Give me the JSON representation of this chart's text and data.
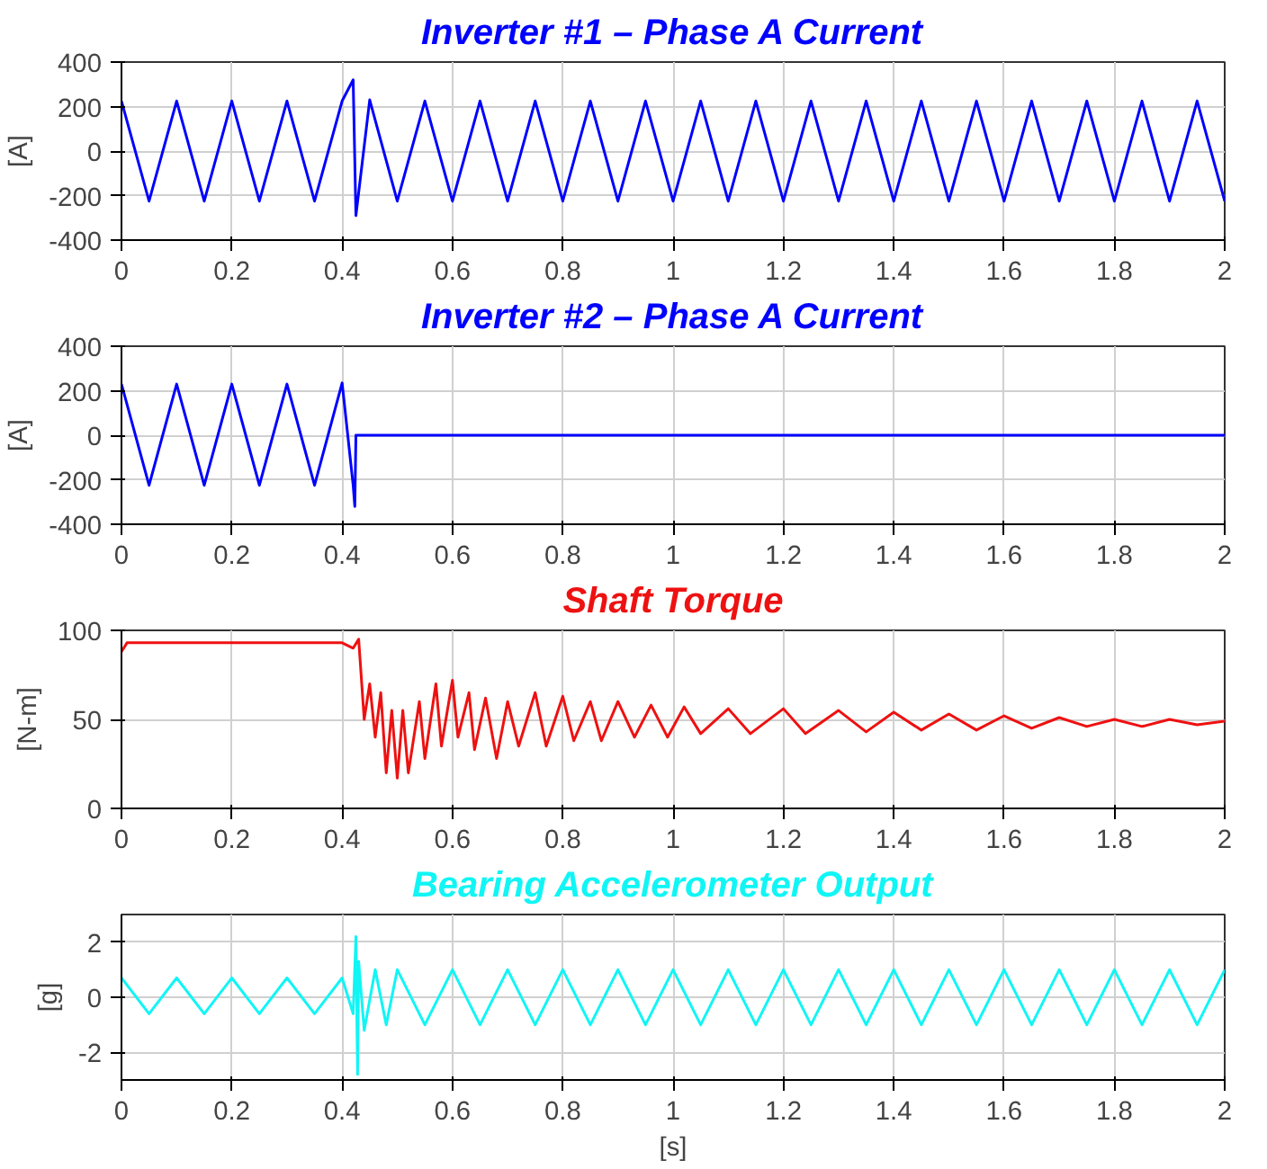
{
  "chart_data": [
    {
      "type": "line",
      "title": "Inverter #1 – Phase A Current",
      "ylabel": "[A]",
      "xlim": [
        0,
        2
      ],
      "ylim": [
        -400,
        400
      ],
      "xticks": [
        0,
        0.2,
        0.4,
        0.6,
        0.8,
        1,
        1.2,
        1.4,
        1.6,
        1.8,
        2
      ],
      "yticks": [
        -400,
        -200,
        0,
        200,
        400
      ],
      "grid": true,
      "series": [
        {
          "color": "#0000ff",
          "x": [
            0,
            0.05,
            0.1,
            0.15,
            0.2,
            0.25,
            0.3,
            0.35,
            0.4,
            0.42,
            0.425,
            0.45,
            0.5,
            0.55,
            0.6,
            0.65,
            0.7,
            0.75,
            0.8,
            0.85,
            0.9,
            0.95,
            1,
            1.05,
            1.1,
            1.15,
            1.2,
            1.25,
            1.3,
            1.35,
            1.4,
            1.45,
            1.5,
            1.55,
            1.6,
            1.65,
            1.7,
            1.75,
            1.8,
            1.85,
            1.9,
            1.95,
            2
          ],
          "values": [
            225,
            -225,
            225,
            -225,
            225,
            -225,
            225,
            -225,
            225,
            320,
            -290,
            230,
            -225,
            225,
            -225,
            225,
            -225,
            225,
            -225,
            225,
            -225,
            225,
            -225,
            225,
            -225,
            225,
            -225,
            225,
            -225,
            225,
            -225,
            225,
            -225,
            225,
            -225,
            225,
            -225,
            225,
            -225,
            225,
            -225,
            225,
            -225
          ]
        }
      ]
    },
    {
      "type": "line",
      "title": "Inverter #2 – Phase A Current",
      "ylabel": "[A]",
      "xlim": [
        0,
        2
      ],
      "ylim": [
        -400,
        400
      ],
      "xticks": [
        0,
        0.2,
        0.4,
        0.6,
        0.8,
        1,
        1.2,
        1.4,
        1.6,
        1.8,
        2
      ],
      "yticks": [
        -400,
        -200,
        0,
        200,
        400
      ],
      "grid": true,
      "series": [
        {
          "color": "#0000ff",
          "x": [
            0,
            0.05,
            0.1,
            0.15,
            0.2,
            0.25,
            0.3,
            0.35,
            0.4,
            0.42,
            0.423,
            0.425,
            2
          ],
          "values": [
            230,
            -225,
            230,
            -225,
            230,
            -225,
            230,
            -225,
            235,
            -225,
            -320,
            0,
            0
          ]
        }
      ]
    },
    {
      "type": "line",
      "title": "Shaft Torque",
      "ylabel": "[N-m]",
      "xlim": [
        0,
        2
      ],
      "ylim": [
        0,
        100
      ],
      "xticks": [
        0,
        0.2,
        0.4,
        0.6,
        0.8,
        1,
        1.2,
        1.4,
        1.6,
        1.8,
        2
      ],
      "yticks": [
        0,
        50,
        100
      ],
      "grid": true,
      "series": [
        {
          "color": "#ee1111",
          "x": [
            0,
            0.01,
            0.4,
            0.42,
            0.43,
            0.44,
            0.45,
            0.46,
            0.47,
            0.48,
            0.49,
            0.5,
            0.51,
            0.52,
            0.54,
            0.55,
            0.57,
            0.58,
            0.6,
            0.61,
            0.63,
            0.64,
            0.66,
            0.68,
            0.7,
            0.72,
            0.75,
            0.77,
            0.8,
            0.82,
            0.85,
            0.87,
            0.9,
            0.93,
            0.96,
            0.99,
            1.02,
            1.05,
            1.1,
            1.14,
            1.2,
            1.24,
            1.3,
            1.35,
            1.4,
            1.45,
            1.5,
            1.55,
            1.6,
            1.65,
            1.7,
            1.75,
            1.8,
            1.85,
            1.9,
            1.95,
            2
          ],
          "values": [
            88,
            93,
            93,
            90,
            95,
            50,
            70,
            40,
            65,
            20,
            55,
            17,
            55,
            20,
            60,
            28,
            70,
            35,
            72,
            40,
            65,
            33,
            62,
            28,
            60,
            35,
            65,
            35,
            63,
            38,
            60,
            38,
            60,
            40,
            58,
            40,
            57,
            42,
            56,
            42,
            56,
            42,
            55,
            43,
            54,
            44,
            53,
            44,
            52,
            45,
            51,
            46,
            50,
            46,
            50,
            47,
            49
          ]
        }
      ]
    },
    {
      "type": "line",
      "title": "Bearing Accelerometer Output",
      "ylabel": "[g]",
      "xlabel": "[s]",
      "xlim": [
        0,
        2
      ],
      "ylim": [
        -3,
        3
      ],
      "xticks": [
        0,
        0.2,
        0.4,
        0.6,
        0.8,
        1,
        1.2,
        1.4,
        1.6,
        1.8,
        2
      ],
      "yticks": [
        -2,
        0,
        2
      ],
      "grid": true,
      "series": [
        {
          "color": "#11f5f5",
          "x": [
            0,
            0.05,
            0.1,
            0.15,
            0.2,
            0.25,
            0.3,
            0.35,
            0.4,
            0.42,
            0.425,
            0.428,
            0.43,
            0.44,
            0.46,
            0.48,
            0.5,
            0.55,
            0.6,
            0.65,
            0.7,
            0.75,
            0.8,
            0.85,
            0.9,
            0.95,
            1,
            1.05,
            1.1,
            1.15,
            1.2,
            1.25,
            1.3,
            1.35,
            1.4,
            1.45,
            1.5,
            1.55,
            1.6,
            1.65,
            1.7,
            1.75,
            1.8,
            1.85,
            1.9,
            1.95,
            2
          ],
          "values": [
            0.7,
            -0.6,
            0.7,
            -0.6,
            0.7,
            -0.6,
            0.7,
            -0.6,
            0.7,
            -0.6,
            2.2,
            -2.8,
            1.3,
            -1.2,
            1.0,
            -1.0,
            1.0,
            -1.0,
            1.0,
            -1.0,
            1.0,
            -1.0,
            1.0,
            -1.0,
            1.0,
            -1.0,
            1.0,
            -1.0,
            1.0,
            -1.0,
            1.0,
            -1.0,
            1.0,
            -1.0,
            1.0,
            -1.0,
            1.0,
            -1.0,
            1.0,
            -1.0,
            1.0,
            -1.0,
            1.0,
            -1.0,
            1.0,
            -1.0,
            1.0
          ]
        }
      ]
    }
  ]
}
